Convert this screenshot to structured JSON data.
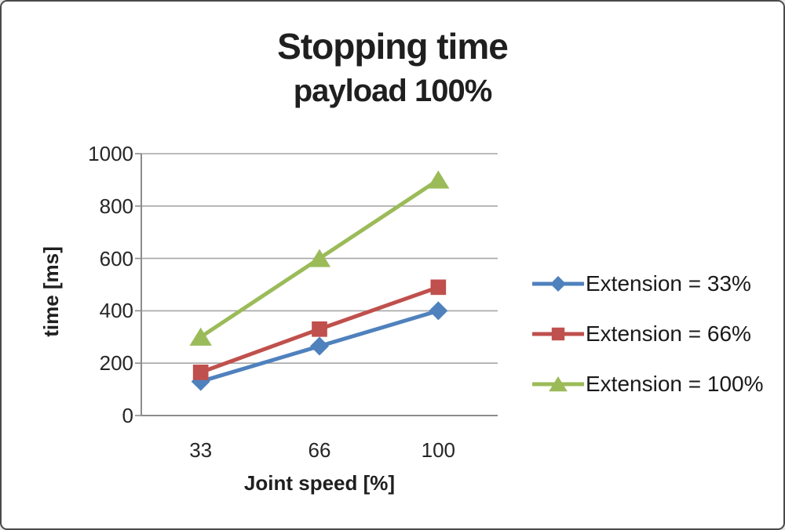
{
  "window": {
    "background": "#ffffff",
    "border_color": "#4a4a4a"
  },
  "chart_data": {
    "type": "line",
    "title": "Stopping time",
    "subtitle": "payload 100%",
    "xlabel": "Joint speed [%]",
    "ylabel": "time [ms]",
    "categories": [
      33,
      66,
      100
    ],
    "x_tick_labels": [
      "33",
      "66",
      "100"
    ],
    "y_ticks": [
      0,
      200,
      400,
      600,
      800,
      1000
    ],
    "y_tick_labels": [
      "0",
      "200",
      "400",
      "600",
      "800",
      "1000"
    ],
    "ylim": [
      0,
      1000
    ],
    "grid": true,
    "legend_position": "right",
    "series": [
      {
        "name": "Extension = 33%",
        "marker": "diamond",
        "color": "#4F81BD",
        "values": [
          130,
          265,
          400
        ]
      },
      {
        "name": "Extension = 66%",
        "marker": "square",
        "color": "#C0504D",
        "values": [
          165,
          330,
          490
        ]
      },
      {
        "name": "Extension = 100%",
        "marker": "triangle",
        "color": "#9BBB59",
        "values": [
          300,
          600,
          900
        ]
      }
    ],
    "style": {
      "grid_color": "#a6a6a6",
      "axis_color": "#8c8c8c",
      "text_color": "#262626",
      "line_width": 5
    }
  }
}
